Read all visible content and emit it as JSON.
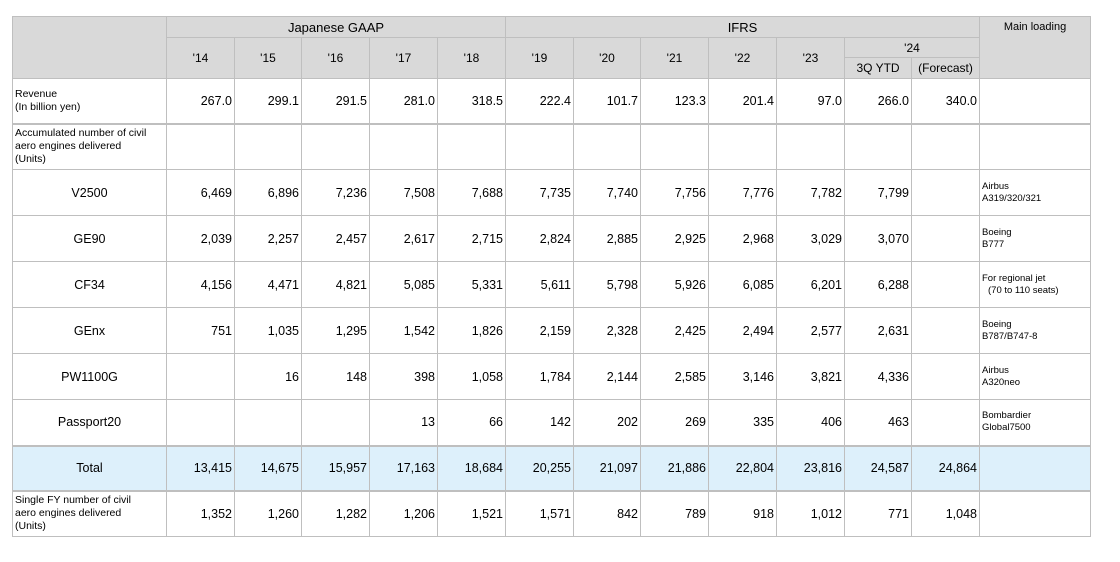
{
  "header": {
    "gaap_label": "Japanese GAAP",
    "ifrs_label": "IFRS",
    "main_loading_label": "Main loading",
    "years": [
      "'14",
      "'15",
      "'16",
      "'17",
      "'18",
      "'19",
      "'20",
      "'21",
      "'22",
      "'23"
    ],
    "year24": "'24",
    "sub_3q": "3Q YTD",
    "sub_forecast": "(Forecast)"
  },
  "revenue": {
    "label_line1": "Revenue",
    "label_line2": "(In billion yen)",
    "values": [
      "267.0",
      "299.1",
      "291.5",
      "281.0",
      "318.5",
      "222.4",
      "101.7",
      "123.3",
      "201.4",
      "97.0",
      "266.0",
      "340.0"
    ]
  },
  "accumulated": {
    "label_line1": "Accumulated number of civil",
    "label_line2": "aero engines delivered",
    "label_line3": "(Units)"
  },
  "engines": [
    {
      "name": "V2500",
      "values": [
        "6,469",
        "6,896",
        "7,236",
        "7,508",
        "7,688",
        "7,735",
        "7,740",
        "7,756",
        "7,776",
        "7,782",
        "7,799",
        ""
      ],
      "note1": "Airbus",
      "note2": "A319/320/321"
    },
    {
      "name": "GE90",
      "values": [
        "2,039",
        "2,257",
        "2,457",
        "2,617",
        "2,715",
        "2,824",
        "2,885",
        "2,925",
        "2,968",
        "3,029",
        "3,070",
        ""
      ],
      "note1": "Boeing",
      "note2": "B777"
    },
    {
      "name": "CF34",
      "values": [
        "4,156",
        "4,471",
        "4,821",
        "5,085",
        "5,331",
        "5,611",
        "5,798",
        "5,926",
        "6,085",
        "6,201",
        "6,288",
        ""
      ],
      "note1": "For regional jet",
      "note2": "(70 to 110 seats)"
    },
    {
      "name": "GEnx",
      "values": [
        "751",
        "1,035",
        "1,295",
        "1,542",
        "1,826",
        "2,159",
        "2,328",
        "2,425",
        "2,494",
        "2,577",
        "2,631",
        ""
      ],
      "note1": "Boeing",
      "note2": "B787/B747-8"
    },
    {
      "name": "PW1100G",
      "values": [
        "",
        "16",
        "148",
        "398",
        "1,058",
        "1,784",
        "2,144",
        "2,585",
        "3,146",
        "3,821",
        "4,336",
        ""
      ],
      "note1": "Airbus",
      "note2": "A320neo"
    },
    {
      "name": "Passport20",
      "values": [
        "",
        "",
        "",
        "13",
        "66",
        "142",
        "202",
        "269",
        "335",
        "406",
        "463",
        ""
      ],
      "note1": "Bombardier",
      "note2": "Global7500"
    }
  ],
  "total": {
    "label": "Total",
    "values": [
      "13,415",
      "14,675",
      "15,957",
      "17,163",
      "18,684",
      "20,255",
      "21,097",
      "21,886",
      "22,804",
      "23,816",
      "24,587",
      "24,864"
    ]
  },
  "single_fy": {
    "label_line1": "Single FY number of civil",
    "label_line2": "aero engines delivered",
    "label_line3": "(Units)",
    "values": [
      "1,352",
      "1,260",
      "1,282",
      "1,206",
      "1,521",
      "1,571",
      "842",
      "789",
      "918",
      "1,012",
      "771",
      "1,048"
    ]
  }
}
